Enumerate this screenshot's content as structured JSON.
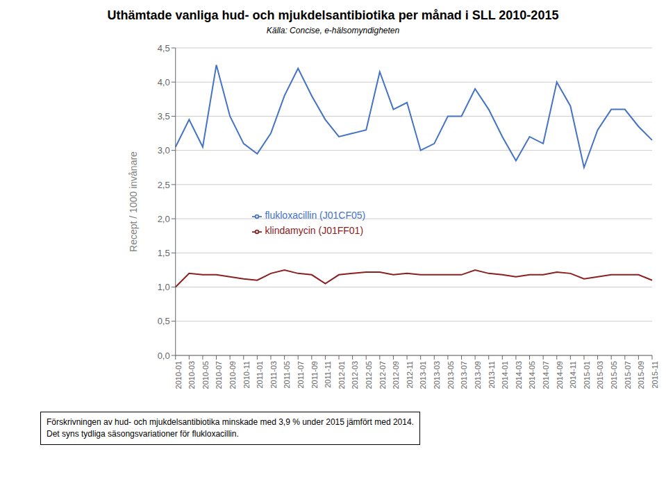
{
  "chart_data": {
    "type": "line",
    "title": "Uthämtade vanliga hud- och mjukdelsantibiotika per månad i SLL 2010-2015",
    "subtitle": "Källa: Concise, e-hälsomyndigheten",
    "y_label": "Recept / 1000 invånare",
    "annotations": [
      "Förskrivningen av hud- och mjukdelsantibiotika minskade med 3,9 % under 2015 jämfört med 2014.",
      "Det syns tydliga säsongsvariationer för flukloxacillin."
    ],
    "categories": [
      "2010-01",
      "2010-03",
      "2010-05",
      "2010-07",
      "2010-09",
      "2010-11",
      "2011-01",
      "2011-03",
      "2011-05",
      "2011-07",
      "2011-09",
      "2011-11",
      "2012-01",
      "2012-03",
      "2012-05",
      "2012-07",
      "2012-09",
      "2012-11",
      "2013-01",
      "2013-03",
      "2013-05",
      "2013-07",
      "2013-09",
      "2013-11",
      "2014-01",
      "2014-03",
      "2014-05",
      "2014-07",
      "2014-09",
      "2014-11",
      "2015-01",
      "2015-03",
      "2015-05",
      "2015-07",
      "2015-09",
      "2015-11"
    ],
    "series": [
      {
        "name": "flukloxacillin (J01CF05)",
        "color": "#4472C4",
        "values": [
          3.05,
          3.45,
          3.05,
          4.25,
          3.5,
          3.1,
          2.95,
          3.25,
          3.8,
          4.2,
          3.8,
          3.45,
          3.2,
          3.25,
          3.3,
          4.15,
          3.6,
          3.7,
          3.0,
          3.1,
          3.5,
          3.5,
          3.9,
          3.6,
          3.2,
          2.85,
          3.2,
          3.1,
          4.0,
          3.65,
          2.75,
          3.3,
          3.6,
          3.6,
          3.35,
          3.15
        ]
      },
      {
        "name": "klindamycin (J01FF01)",
        "color": "#8B2020",
        "values": [
          1.0,
          1.2,
          1.18,
          1.18,
          1.15,
          1.12,
          1.1,
          1.2,
          1.25,
          1.2,
          1.18,
          1.05,
          1.18,
          1.2,
          1.22,
          1.22,
          1.18,
          1.2,
          1.18,
          1.18,
          1.18,
          1.18,
          1.25,
          1.2,
          1.18,
          1.15,
          1.18,
          1.18,
          1.22,
          1.2,
          1.12,
          1.15,
          1.18,
          1.18,
          1.18,
          1.1
        ]
      }
    ],
    "ylim": [
      0.0,
      4.5
    ],
    "yticks": [
      {
        "value": 0.0,
        "label": "0,0"
      },
      {
        "value": 0.5,
        "label": "0,5"
      },
      {
        "value": 1.0,
        "label": "1,0"
      },
      {
        "value": 1.5,
        "label": "1,5"
      },
      {
        "value": 2.0,
        "label": "2,0"
      },
      {
        "value": 2.5,
        "label": "2,5"
      },
      {
        "value": 3.0,
        "label": "3,0"
      },
      {
        "value": 3.5,
        "label": "3,5"
      },
      {
        "value": 4.0,
        "label": "4,0"
      },
      {
        "value": 4.5,
        "label": "4,5"
      }
    ],
    "grid": true,
    "legend": "center left"
  }
}
